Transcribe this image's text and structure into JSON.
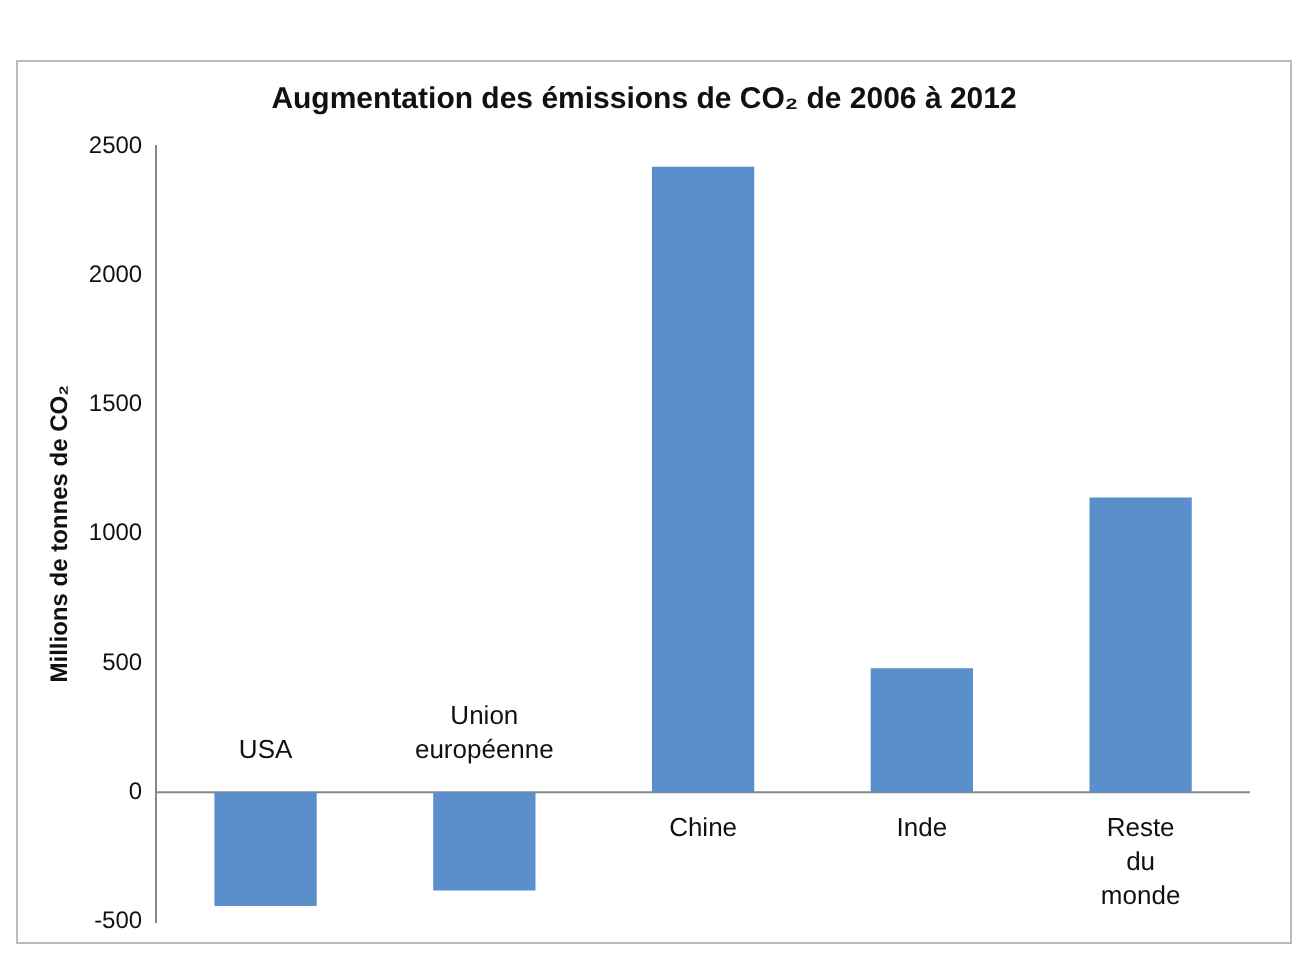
{
  "chart_data": {
    "type": "bar",
    "title": "Augmentation des émissions de CO₂ de 2006 à 2012",
    "ylabel": "Millions de tonnes de CO₂",
    "categories": [
      "USA",
      "Union européenne",
      "Chine",
      "Inde",
      "Reste du monde"
    ],
    "values": [
      -440,
      -380,
      2420,
      480,
      1140
    ],
    "color": "#5b8fcb",
    "ylim": [
      -500,
      2500
    ],
    "yticks": [
      -500,
      0,
      500,
      1000,
      1500,
      2000,
      2500
    ],
    "grid": false,
    "legend": false
  }
}
